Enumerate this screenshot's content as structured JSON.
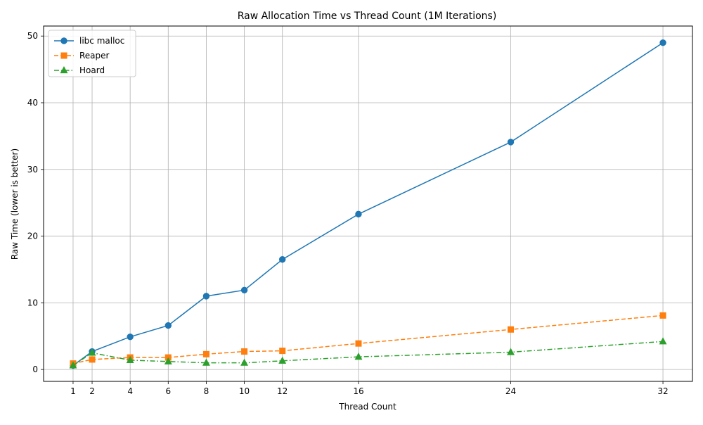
{
  "chart_data": {
    "type": "line",
    "title": "Raw Allocation Time vs Thread Count (1M Iterations)",
    "xlabel": "Thread Count",
    "ylabel": "Raw Time (lower is better)",
    "x": [
      1,
      2,
      4,
      6,
      8,
      10,
      12,
      16,
      24,
      32
    ],
    "x_ticks": [
      1,
      2,
      4,
      6,
      8,
      10,
      12,
      16,
      24,
      32
    ],
    "y_ticks": [
      0,
      10,
      20,
      30,
      40,
      50
    ],
    "xlim": [
      -0.55,
      33.55
    ],
    "ylim": [
      -1.78,
      51.5
    ],
    "grid": true,
    "legend_position": "top-left",
    "series": [
      {
        "name": "libc malloc",
        "values": [
          0.6,
          2.7,
          4.9,
          6.6,
          11.0,
          11.9,
          16.5,
          23.3,
          34.1,
          49.0
        ],
        "color": "#1f77b4",
        "marker": "circle",
        "line_style": "solid"
      },
      {
        "name": "Reaper",
        "values": [
          0.9,
          1.5,
          1.8,
          1.8,
          2.3,
          2.7,
          2.8,
          3.9,
          6.0,
          8.1
        ],
        "color": "#ff7f0e",
        "marker": "square",
        "line_style": "dashed"
      },
      {
        "name": "Hoard",
        "values": [
          0.6,
          2.5,
          1.4,
          1.2,
          1.0,
          1.0,
          1.3,
          1.9,
          2.6,
          4.2
        ],
        "color": "#2ca02c",
        "marker": "triangle",
        "line_style": "dashdot"
      }
    ]
  }
}
